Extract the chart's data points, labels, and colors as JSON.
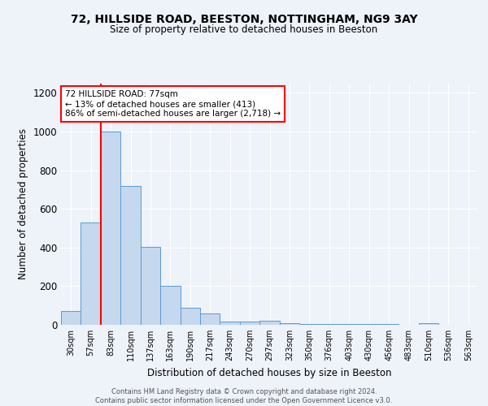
{
  "title1": "72, HILLSIDE ROAD, BEESTON, NOTTINGHAM, NG9 3AY",
  "title2": "Size of property relative to detached houses in Beeston",
  "xlabel": "Distribution of detached houses by size in Beeston",
  "ylabel": "Number of detached properties",
  "footer": "Contains HM Land Registry data © Crown copyright and database right 2024.\nContains public sector information licensed under the Open Government Licence v3.0.",
  "categories": [
    "30sqm",
    "57sqm",
    "83sqm",
    "110sqm",
    "137sqm",
    "163sqm",
    "190sqm",
    "217sqm",
    "243sqm",
    "270sqm",
    "297sqm",
    "323sqm",
    "350sqm",
    "376sqm",
    "403sqm",
    "430sqm",
    "456sqm",
    "483sqm",
    "510sqm",
    "536sqm",
    "563sqm"
  ],
  "values": [
    70,
    530,
    1000,
    720,
    405,
    200,
    90,
    60,
    15,
    15,
    20,
    10,
    5,
    5,
    5,
    5,
    5,
    0,
    10,
    0,
    0
  ],
  "bar_color": "#c5d8ee",
  "bar_edge_color": "#5b9bd5",
  "red_line_index": 2,
  "annotation_text": "72 HILLSIDE ROAD: 77sqm\n← 13% of detached houses are smaller (413)\n86% of semi-detached houses are larger (2,718) →",
  "ylim": [
    0,
    1250
  ],
  "yticks": [
    0,
    200,
    400,
    600,
    800,
    1000,
    1200
  ],
  "background_color": "#eef2f9",
  "plot_bg_color": "#eef2f9"
}
